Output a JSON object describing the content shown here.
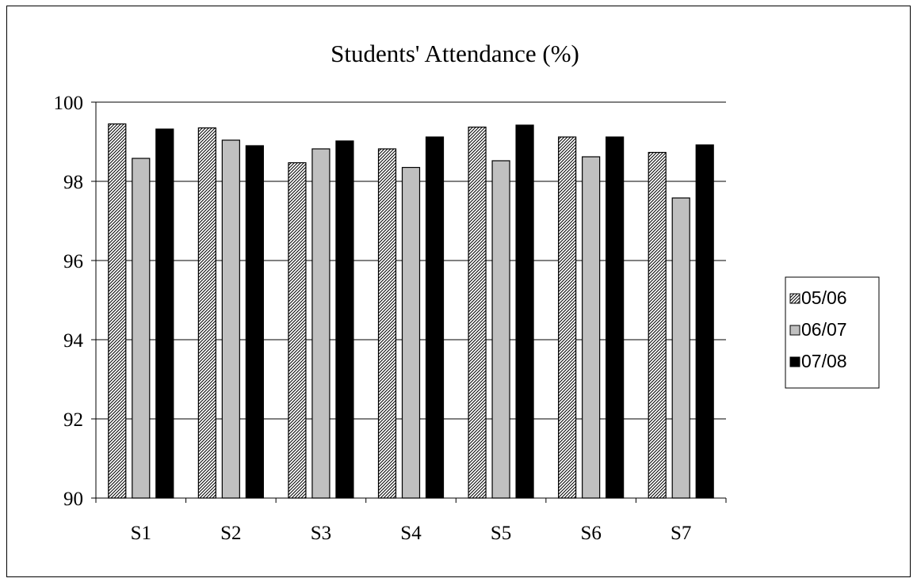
{
  "chart_data": {
    "type": "bar",
    "title": "Students' Attendance (%)",
    "categories": [
      "S1",
      "S2",
      "S3",
      "S4",
      "S5",
      "S6",
      "S7"
    ],
    "series": [
      {
        "name": "05/06",
        "values": [
          99.45,
          99.35,
          98.47,
          98.82,
          99.37,
          99.12,
          98.73
        ],
        "fill": "hatched"
      },
      {
        "name": "06/07",
        "values": [
          98.58,
          99.04,
          98.82,
          98.35,
          98.52,
          98.62,
          97.58
        ],
        "fill": "#c0c0c0"
      },
      {
        "name": "07/08",
        "values": [
          99.32,
          98.9,
          99.02,
          99.12,
          99.42,
          99.12,
          98.92
        ],
        "fill": "#000000"
      }
    ],
    "xlabel": "",
    "ylabel": "",
    "ylim": [
      90,
      100
    ],
    "yticks": [
      90,
      92,
      94,
      96,
      98,
      100
    ],
    "grid": true,
    "legend_position": "right"
  }
}
